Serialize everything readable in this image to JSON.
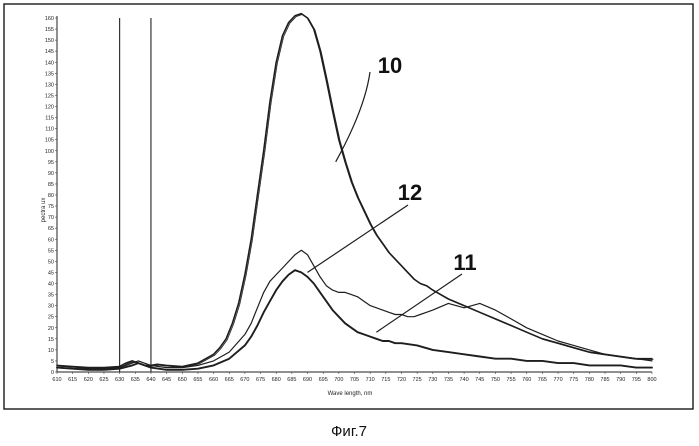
{
  "caption": "Фиг.7",
  "chart_data": {
    "type": "line",
    "xlabel": "Wave length, nm",
    "ylabel": "pectra ux",
    "xlim": [
      610,
      800
    ],
    "ylim": [
      0,
      160
    ],
    "y_ticks": [
      0,
      5,
      10,
      15,
      20,
      25,
      30,
      35,
      40,
      45,
      50,
      55,
      60,
      65,
      70,
      75,
      80,
      85,
      90,
      95,
      100,
      105,
      110,
      115,
      120,
      125,
      130,
      135,
      140,
      145,
      150,
      155,
      160
    ],
    "x_ticks": [
      610,
      615,
      620,
      625,
      630,
      635,
      640,
      645,
      650,
      655,
      660,
      665,
      670,
      675,
      680,
      685,
      690,
      695,
      700,
      705,
      710,
      715,
      720,
      725,
      730,
      735,
      740,
      745,
      750,
      755,
      760,
      765,
      770,
      775,
      780,
      785,
      790,
      795,
      800
    ],
    "vertical_markers": [
      630,
      640
    ],
    "callouts": [
      {
        "label": "10",
        "series_index": 0,
        "point_x": 699,
        "point_y": 95
      },
      {
        "label": "12",
        "series_index": 2,
        "point_x": 690,
        "point_y": 45
      },
      {
        "label": "11",
        "series_index": 1,
        "point_x": 712,
        "point_y": 18
      }
    ],
    "series": [
      {
        "label_on_chart": "10",
        "x": [
          610,
          615,
          620,
          625,
          630,
          632,
          634,
          636,
          638,
          640,
          642,
          645,
          650,
          655,
          660,
          662,
          664,
          666,
          668,
          670,
          672,
          674,
          676,
          678,
          680,
          682,
          684,
          686,
          688,
          690,
          692,
          694,
          696,
          698,
          700,
          702,
          704,
          706,
          708,
          710,
          712,
          714,
          716,
          718,
          720,
          722,
          724,
          726,
          728,
          730,
          735,
          740,
          745,
          750,
          755,
          760,
          765,
          770,
          775,
          780,
          785,
          790,
          795,
          800
        ],
        "y": [
          3,
          2.5,
          2,
          2,
          2.5,
          4,
          5,
          4,
          3,
          3,
          3.5,
          3,
          2.5,
          4,
          8,
          11,
          15,
          22,
          31,
          44,
          60,
          80,
          100,
          122,
          140,
          152,
          158,
          161,
          162,
          160,
          155,
          145,
          132,
          118,
          105,
          95,
          86,
          79,
          73,
          67,
          62,
          58,
          54,
          51,
          48,
          45,
          42,
          40,
          39,
          37,
          33,
          30,
          27,
          24,
          21,
          18,
          15,
          13,
          11,
          9,
          8,
          7,
          6,
          6
        ]
      },
      {
        "label_on_chart": "11",
        "x": [
          610,
          615,
          620,
          625,
          630,
          634,
          636,
          640,
          645,
          650,
          655,
          660,
          665,
          670,
          672,
          674,
          676,
          678,
          680,
          682,
          684,
          686,
          688,
          690,
          692,
          694,
          696,
          698,
          700,
          702,
          704,
          706,
          708,
          710,
          712,
          714,
          716,
          718,
          720,
          725,
          730,
          735,
          740,
          745,
          750,
          755,
          760,
          765,
          770,
          775,
          780,
          785,
          790,
          795,
          800
        ],
        "y": [
          2,
          1.5,
          1,
          1,
          1.5,
          3,
          4,
          2,
          1,
          1,
          1.5,
          3,
          6,
          12,
          16,
          21,
          27,
          32,
          37,
          41,
          44,
          46,
          45,
          43,
          40,
          36,
          32,
          28,
          25,
          22,
          20,
          18,
          17,
          16,
          15,
          14,
          14,
          13,
          13,
          12,
          10,
          9,
          8,
          7,
          6,
          6,
          5,
          5,
          4,
          4,
          3,
          3,
          3,
          2,
          2
        ]
      },
      {
        "label_on_chart": "12",
        "x": [
          610,
          615,
          620,
          625,
          630,
          634,
          636,
          640,
          645,
          650,
          655,
          660,
          665,
          670,
          672,
          674,
          676,
          678,
          680,
          682,
          684,
          686,
          688,
          690,
          692,
          694,
          696,
          698,
          700,
          702,
          704,
          706,
          708,
          710,
          712,
          714,
          716,
          718,
          720,
          722,
          724,
          726,
          728,
          730,
          735,
          740,
          745,
          750,
          755,
          760,
          765,
          770,
          775,
          780,
          785,
          790,
          795,
          800
        ],
        "y": [
          2,
          1.5,
          1.5,
          1.5,
          2,
          4,
          5,
          3,
          2,
          2,
          3,
          5,
          9,
          17,
          22,
          29,
          36,
          41,
          44,
          47,
          50,
          53,
          55,
          53,
          48,
          43,
          39,
          37,
          36,
          36,
          35,
          34,
          32,
          30,
          29,
          28,
          27,
          26,
          26,
          25,
          25,
          26,
          27,
          28,
          31,
          29,
          31,
          28,
          24,
          20,
          17,
          14,
          12,
          10,
          8,
          7,
          6,
          5
        ]
      }
    ]
  }
}
